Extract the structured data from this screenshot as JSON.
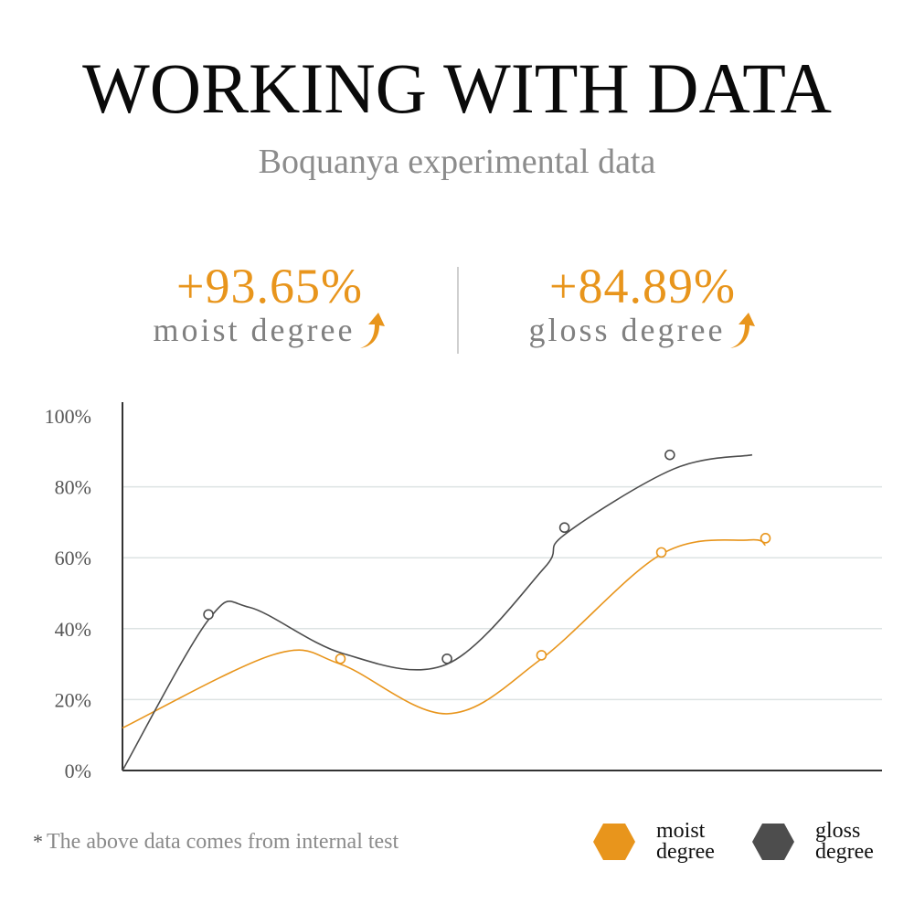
{
  "header": {
    "title": "WORKING WITH DATA",
    "subtitle": "Boquanya experimental data"
  },
  "stats": [
    {
      "value": "+93.65%",
      "label": "moist degree",
      "icon": "up-arrow-icon"
    },
    {
      "value": "+84.89%",
      "label": "gloss degree",
      "icon": "up-arrow-icon"
    }
  ],
  "colors": {
    "moist": "#e8951c",
    "gloss": "#4d4d4d",
    "grid": "#dde3e3",
    "axis": "#333333"
  },
  "chart_data": {
    "type": "line",
    "y_ticks": [
      "0%",
      "20%",
      "40%",
      "60%",
      "80%",
      "100%"
    ],
    "ylim": [
      0,
      100
    ],
    "grid": true,
    "legend_position": "bottom-right",
    "series": [
      {
        "name": "moist degree",
        "color": "#e8951c",
        "points": [
          [
            0.0,
            12
          ],
          [
            1.25,
            32.7
          ],
          [
            1.8,
            30
          ],
          [
            2.68,
            16
          ],
          [
            3.46,
            31.5
          ],
          [
            4.45,
            61
          ],
          [
            5.17,
            65
          ],
          [
            5.31,
            63.5
          ]
        ]
      },
      {
        "name": "gloss degree",
        "color": "#4d4d4d",
        "points": [
          [
            0.0,
            0
          ],
          [
            0.71,
            42.5
          ],
          [
            1.05,
            46
          ],
          [
            1.82,
            33
          ],
          [
            2.68,
            30
          ],
          [
            3.48,
            57
          ],
          [
            3.65,
            66.5
          ],
          [
            4.55,
            85
          ],
          [
            5.2,
            89
          ]
        ]
      }
    ],
    "markers": {
      "moist degree": [
        [
          1.8,
          31.5
        ],
        [
          3.46,
          32.5
        ],
        [
          4.45,
          61.5
        ],
        [
          5.31,
          65.5
        ]
      ],
      "gloss degree": [
        [
          0.71,
          44
        ],
        [
          2.68,
          31.5
        ],
        [
          3.65,
          68.5
        ],
        [
          4.52,
          89
        ]
      ]
    },
    "x_range": [
      0,
      5.3
    ]
  },
  "footnote": {
    "star": "*",
    "text": "The above data comes from internal test"
  },
  "legend": [
    {
      "label": "moist\ndegree",
      "color": "#e8951c",
      "icon": "hexagon-icon"
    },
    {
      "label": "gloss\ndegree",
      "color": "#4d4d4d",
      "icon": "hexagon-icon"
    }
  ]
}
